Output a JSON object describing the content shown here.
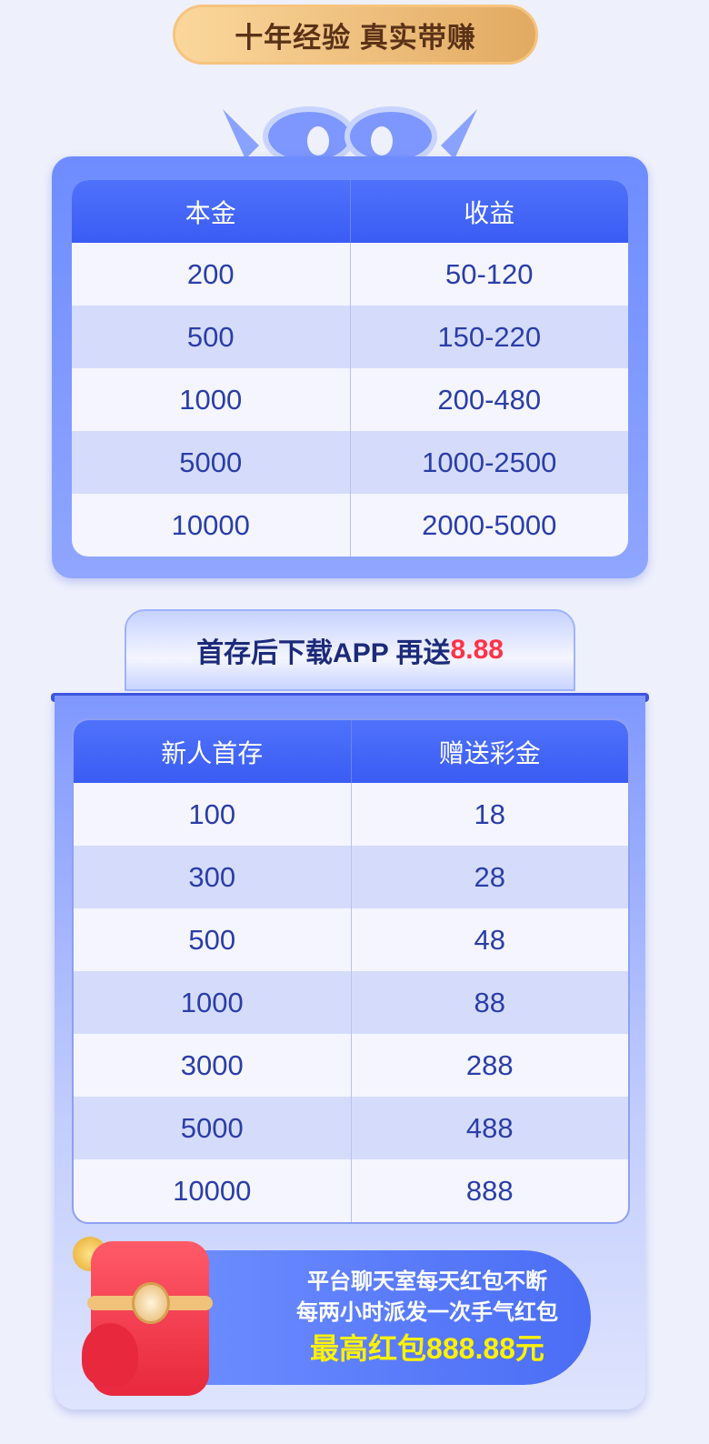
{
  "header": {
    "title": "十年经验 真实带赚"
  },
  "table1": {
    "headers": [
      "本金",
      "收益"
    ],
    "rows": [
      [
        "200",
        "50-120"
      ],
      [
        "500",
        "150-220"
      ],
      [
        "1000",
        "200-480"
      ],
      [
        "5000",
        "1000-2500"
      ],
      [
        "10000",
        "2000-5000"
      ]
    ]
  },
  "banner2": {
    "text": "首存后下载APP 再送",
    "highlight": "8.88",
    "highlight_color": "#ff3348"
  },
  "table2": {
    "headers": [
      "新人首存",
      "赠送彩金"
    ],
    "rows": [
      [
        "100",
        "18"
      ],
      [
        "300",
        "28"
      ],
      [
        "500",
        "48"
      ],
      [
        "1000",
        "88"
      ],
      [
        "3000",
        "288"
      ],
      [
        "5000",
        "488"
      ],
      [
        "10000",
        "888"
      ]
    ]
  },
  "promo": {
    "line1": "平台聊天室每天红包不断",
    "line2": "每两小时派发一次手气红包",
    "line3": "最高红包888.88元",
    "line3_color": "#fff200"
  }
}
